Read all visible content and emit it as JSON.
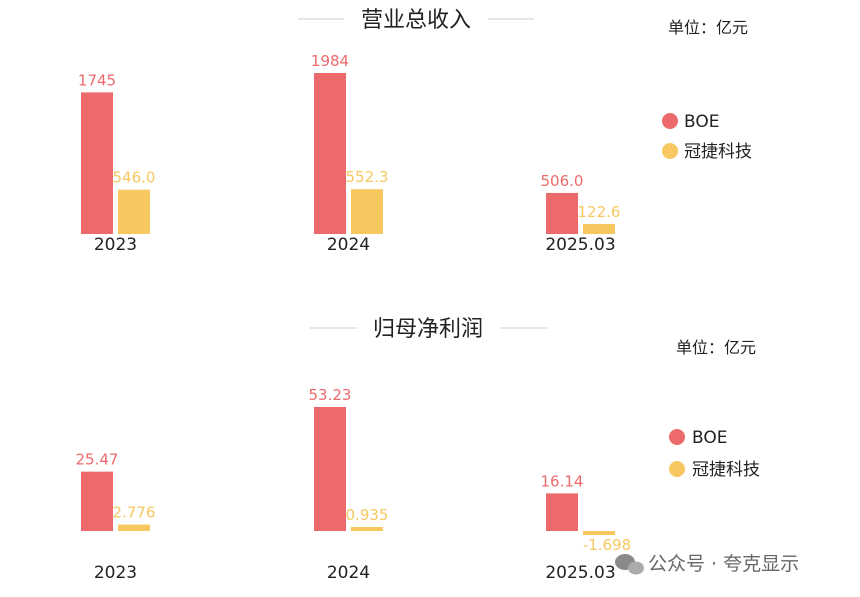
{
  "charts": [
    {
      "title": "营业总收入",
      "unit_label": "单位：亿元",
      "chart_data": {
        "type": "bar",
        "title": "营业总收入",
        "categories": [
          "2023",
          "2024",
          "2025.03"
        ],
        "series": [
          {
            "name": "BOE",
            "color": "#ec6a6b",
            "values": [
              1745,
              1984,
              506.0
            ],
            "labels": [
              "1745",
              "1984",
              "506.0"
            ]
          },
          {
            "name": "冠捷科技",
            "color": "#f6c85f",
            "values": [
              546.0,
              552.3,
              122.6
            ],
            "labels": [
              "546.0",
              "552.3",
              "122.6"
            ]
          }
        ],
        "ylim": [
          0,
          1984
        ],
        "legend": "right",
        "grid": false
      }
    },
    {
      "title": "归母净利润",
      "unit_label": "单位：亿元",
      "chart_data": {
        "type": "bar",
        "title": "归母净利润",
        "categories": [
          "2023",
          "2024",
          "2025.03"
        ],
        "series": [
          {
            "name": "BOE",
            "color": "#ec6a6b",
            "values": [
              25.47,
              53.23,
              16.14
            ],
            "labels": [
              "25.47",
              "53.23",
              "16.14"
            ]
          },
          {
            "name": "冠捷科技",
            "color": "#f6c85f",
            "values": [
              2.776,
              0.935,
              -1.698
            ],
            "labels": [
              "2.776",
              "0.935",
              "-1.698"
            ]
          }
        ],
        "ylim": [
          -1.698,
          53.23
        ],
        "legend": "right",
        "grid": false
      }
    }
  ],
  "watermark": {
    "text": "公众号 · 夸克显示",
    "icon": "wechat-icon"
  }
}
